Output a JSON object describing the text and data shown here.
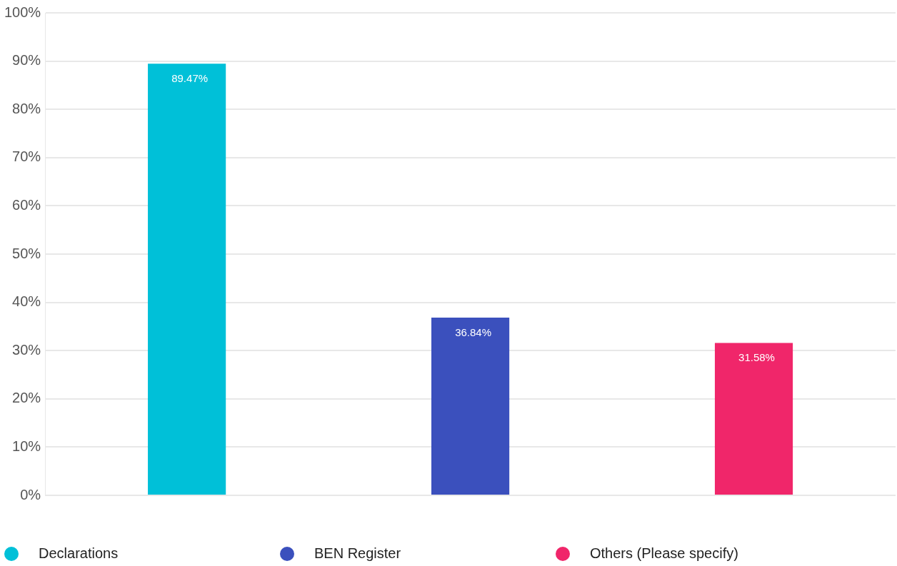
{
  "chart_data": {
    "type": "bar",
    "categories": [
      null,
      null,
      null
    ],
    "series": [
      {
        "name": "Declarations",
        "color": "#00c0d8",
        "values": [
          89.47,
          null,
          null
        ],
        "value_labels": [
          "89.47%",
          null,
          null
        ]
      },
      {
        "name": "BEN Register",
        "color": "#3b50bd",
        "values": [
          null,
          36.84,
          null
        ],
        "value_labels": [
          null,
          "36.84%",
          null
        ]
      },
      {
        "name": "Others (Please specify)",
        "color": "#f0266a",
        "values": [
          null,
          null,
          31.58
        ],
        "value_labels": [
          null,
          null,
          "31.58%"
        ]
      }
    ],
    "ylim": [
      0,
      100
    ],
    "yticks": [
      {
        "value": 0,
        "label": "0%"
      },
      {
        "value": 10,
        "label": "10%"
      },
      {
        "value": 20,
        "label": "20%"
      },
      {
        "value": 30,
        "label": "30%"
      },
      {
        "value": 40,
        "label": "40%"
      },
      {
        "value": 50,
        "label": "50%"
      },
      {
        "value": 60,
        "label": "60%"
      },
      {
        "value": 70,
        "label": "70%"
      },
      {
        "value": 80,
        "label": "80%"
      },
      {
        "value": 90,
        "label": "90%"
      },
      {
        "value": 100,
        "label": "100%"
      }
    ],
    "grid": "y",
    "legend": "bottom"
  }
}
